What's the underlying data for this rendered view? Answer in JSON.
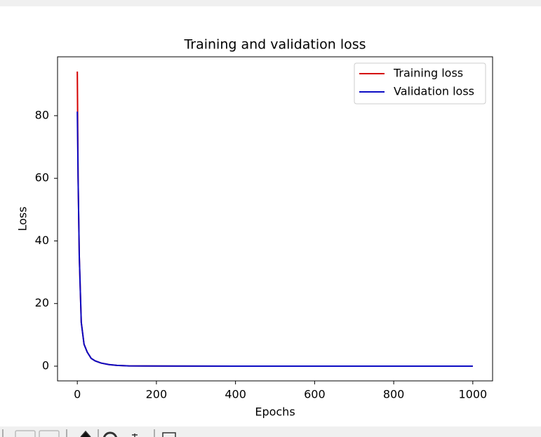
{
  "chart_data": {
    "type": "line",
    "title": "Training and validation loss",
    "x_label": "Epochs",
    "y_label": "Loss",
    "x": [
      0,
      2,
      5,
      10,
      17,
      25,
      35,
      45,
      60,
      80,
      100,
      130,
      170,
      250,
      400,
      600,
      800,
      1000
    ],
    "series": [
      {
        "name": "Training loss",
        "color": "#d40000",
        "values": [
          94.1,
          60,
          35,
          14,
          7,
          4.5,
          2.5,
          1.7,
          1.0,
          0.5,
          0.25,
          0.1,
          0.05,
          0.02,
          0.01,
          0.01,
          0.01,
          0.01
        ]
      },
      {
        "name": "Validation loss",
        "color": "#0c0cc4",
        "values": [
          81.3,
          60,
          35,
          14,
          7,
          4.5,
          2.5,
          1.7,
          1.0,
          0.5,
          0.25,
          0.1,
          0.05,
          0.02,
          0.01,
          0.01,
          0.01,
          0.01
        ]
      }
    ],
    "xlim": [
      -50,
      1050
    ],
    "xticks": [
      0,
      200,
      400,
      600,
      800,
      1000
    ],
    "ylim": [
      -4.7,
      98.8
    ],
    "yticks": [
      0,
      20,
      40,
      60,
      80
    ],
    "grid": false,
    "legend": "upper right"
  }
}
